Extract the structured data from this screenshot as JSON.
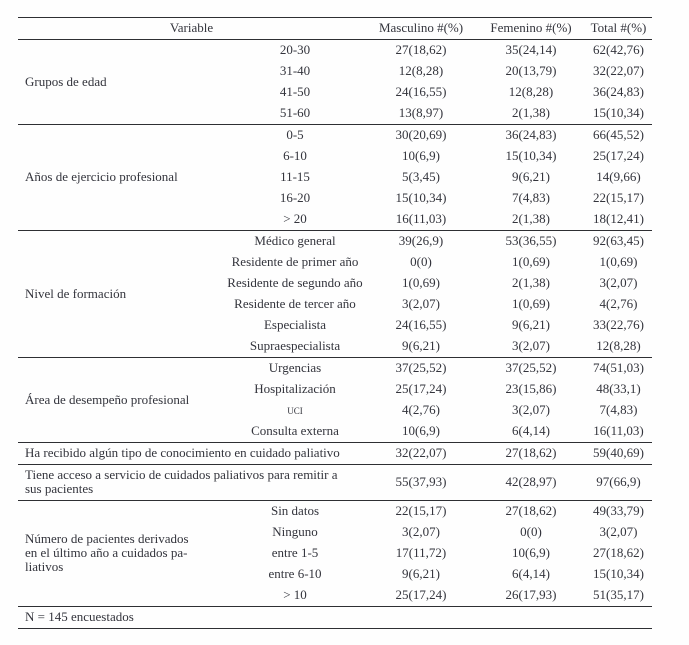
{
  "table": {
    "headers": {
      "variable": "Variable",
      "masculino": "Masculino #(%)",
      "femenino": "Femenino #(%)",
      "total": "Total #(%)"
    },
    "blocks": [
      {
        "type": "group",
        "group": "Grupos de edad",
        "rows": [
          {
            "label": "20-30",
            "masculino": "27(18,62)",
            "femenino": "35(24,14)",
            "total": "62(42,76)"
          },
          {
            "label": "31-40",
            "masculino": "12(8,28)",
            "femenino": "20(13,79)",
            "total": "32(22,07)"
          },
          {
            "label": "41-50",
            "masculino": "24(16,55)",
            "femenino": "12(8,28)",
            "total": "36(24,83)"
          },
          {
            "label": "51-60",
            "masculino": "13(8,97)",
            "femenino": "2(1,38)",
            "total": "15(10,34)"
          }
        ]
      },
      {
        "type": "group",
        "group": "Años de ejercicio profesional",
        "rows": [
          {
            "label": "0-5",
            "masculino": "30(20,69)",
            "femenino": "36(24,83)",
            "total": "66(45,52)"
          },
          {
            "label": "6-10",
            "masculino": "10(6,9)",
            "femenino": "15(10,34)",
            "total": "25(17,24)"
          },
          {
            "label": "11-15",
            "masculino": "5(3,45)",
            "femenino": "9(6,21)",
            "total": "14(9,66)"
          },
          {
            "label": "16-20",
            "masculino": "15(10,34)",
            "femenino": "7(4,83)",
            "total": "22(15,17)"
          },
          {
            "label": "> 20",
            "masculino": "16(11,03)",
            "femenino": "2(1,38)",
            "total": "18(12,41)"
          }
        ]
      },
      {
        "type": "group",
        "group": "Nivel de formación",
        "rows": [
          {
            "label": "Médico general",
            "masculino": "39(26,9)",
            "femenino": "53(36,55)",
            "total": "92(63,45)"
          },
          {
            "label": "Residente de primer año",
            "masculino": "0(0)",
            "femenino": "1(0,69)",
            "total": "1(0,69)"
          },
          {
            "label": "Residente de segundo año",
            "masculino": "1(0,69)",
            "femenino": "2(1,38)",
            "total": "3(2,07)"
          },
          {
            "label": "Residente de tercer año",
            "masculino": "3(2,07)",
            "femenino": "1(0,69)",
            "total": "4(2,76)"
          },
          {
            "label": "Especialista",
            "masculino": "24(16,55)",
            "femenino": "9(6,21)",
            "total": "33(22,76)"
          },
          {
            "label": "Supraespecialista",
            "masculino": "9(6,21)",
            "femenino": "3(2,07)",
            "total": "12(8,28)"
          }
        ]
      },
      {
        "type": "group",
        "group": "Área de desempeño profesional",
        "rows": [
          {
            "label": "Urgencias",
            "masculino": "37(25,52)",
            "femenino": "37(25,52)",
            "total": "74(51,03)"
          },
          {
            "label": "Hospitalización",
            "masculino": "25(17,24)",
            "femenino": "23(15,86)",
            "total": "48(33,1)"
          },
          {
            "label": "uci",
            "small_caps": true,
            "masculino": "4(2,76)",
            "femenino": "3(2,07)",
            "total": "7(4,83)"
          },
          {
            "label": "Consulta externa",
            "masculino": "10(6,9)",
            "femenino": "6(4,14)",
            "total": "16(11,03)"
          }
        ]
      },
      {
        "type": "full",
        "label": "Ha recibido algún tipo de conocimiento en cuidado paliativo",
        "masculino": "32(22,07)",
        "femenino": "27(18,62)",
        "total": "59(40,69)"
      },
      {
        "type": "full",
        "label": "Tiene acceso a servicio de cuidados paliativos para remitir a sus pacientes",
        "masculino": "55(37,93)",
        "femenino": "42(28,97)",
        "total": "97(66,9)"
      },
      {
        "type": "group",
        "group": "Número de pacientes derivados\nen el último año a cuidados pa-\nliativos",
        "rows": [
          {
            "label": "Sin datos",
            "masculino": "22(15,17)",
            "femenino": "27(18,62)",
            "total": "49(33,79)"
          },
          {
            "label": "Ninguno",
            "masculino": "3(2,07)",
            "femenino": "0(0)",
            "total": "3(2,07)"
          },
          {
            "label": "entre 1-5",
            "masculino": "17(11,72)",
            "femenino": "10(6,9)",
            "total": "27(18,62)"
          },
          {
            "label": "entre 6-10",
            "masculino": "9(6,21)",
            "femenino": "6(4,14)",
            "total": "15(10,34)"
          },
          {
            "label": "> 10",
            "masculino": "25(17,24)",
            "femenino": "26(17,93)",
            "total": "51(35,17)"
          }
        ]
      }
    ],
    "footer": "N = 145 encuestados"
  }
}
